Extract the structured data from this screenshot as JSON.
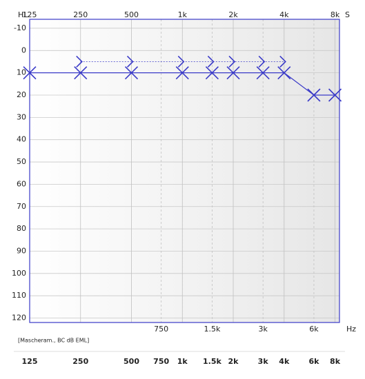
{
  "chart_data": {
    "type": "line",
    "corner_label": "HL",
    "right_label": "S",
    "x_unit": "Hz",
    "note": "[Mascheram., BC dB EML]",
    "log_x": true,
    "grid": true,
    "xlim": [
      125,
      8500
    ],
    "ylim": [
      -14,
      122
    ],
    "yticks": [
      -10,
      0,
      10,
      20,
      30,
      40,
      50,
      60,
      70,
      80,
      90,
      100,
      110,
      120
    ],
    "xticks_top": [
      125,
      250,
      500,
      {
        "value": 1000,
        "label": "1k"
      },
      {
        "value": 2000,
        "label": "2k"
      },
      {
        "value": 4000,
        "label": "4k"
      },
      {
        "value": 8000,
        "label": "8k"
      }
    ],
    "xticks_mid": [
      750,
      {
        "value": 1500,
        "label": "1.5k"
      },
      {
        "value": 3000,
        "label": "3k"
      },
      {
        "value": 6000,
        "label": "6k"
      }
    ],
    "xticks_bottom": [
      125,
      250,
      500,
      750,
      {
        "value": 1000,
        "label": "1k"
      },
      {
        "value": 1500,
        "label": "1.5k"
      },
      {
        "value": 2000,
        "label": "2k"
      },
      {
        "value": 3000,
        "label": "3k"
      },
      {
        "value": 4000,
        "label": "4k"
      },
      {
        "value": 6000,
        "label": "6k"
      },
      {
        "value": 8000,
        "label": "8k"
      }
    ],
    "series": [
      {
        "marker": "x",
        "line": "solid",
        "color": "#3a3ac8",
        "x": [
          125,
          250,
          500,
          1000,
          1500,
          2000,
          3000,
          4000,
          6000,
          8000
        ],
        "values": [
          10,
          10,
          10,
          10,
          10,
          10,
          10,
          10,
          20,
          20
        ]
      },
      {
        "marker": ">",
        "line": "dotted",
        "color": "#3a3ac8",
        "x": [
          250,
          500,
          1000,
          1500,
          2000,
          3000,
          4000
        ],
        "values": [
          5,
          5,
          5,
          5,
          5,
          5,
          5
        ]
      }
    ]
  }
}
